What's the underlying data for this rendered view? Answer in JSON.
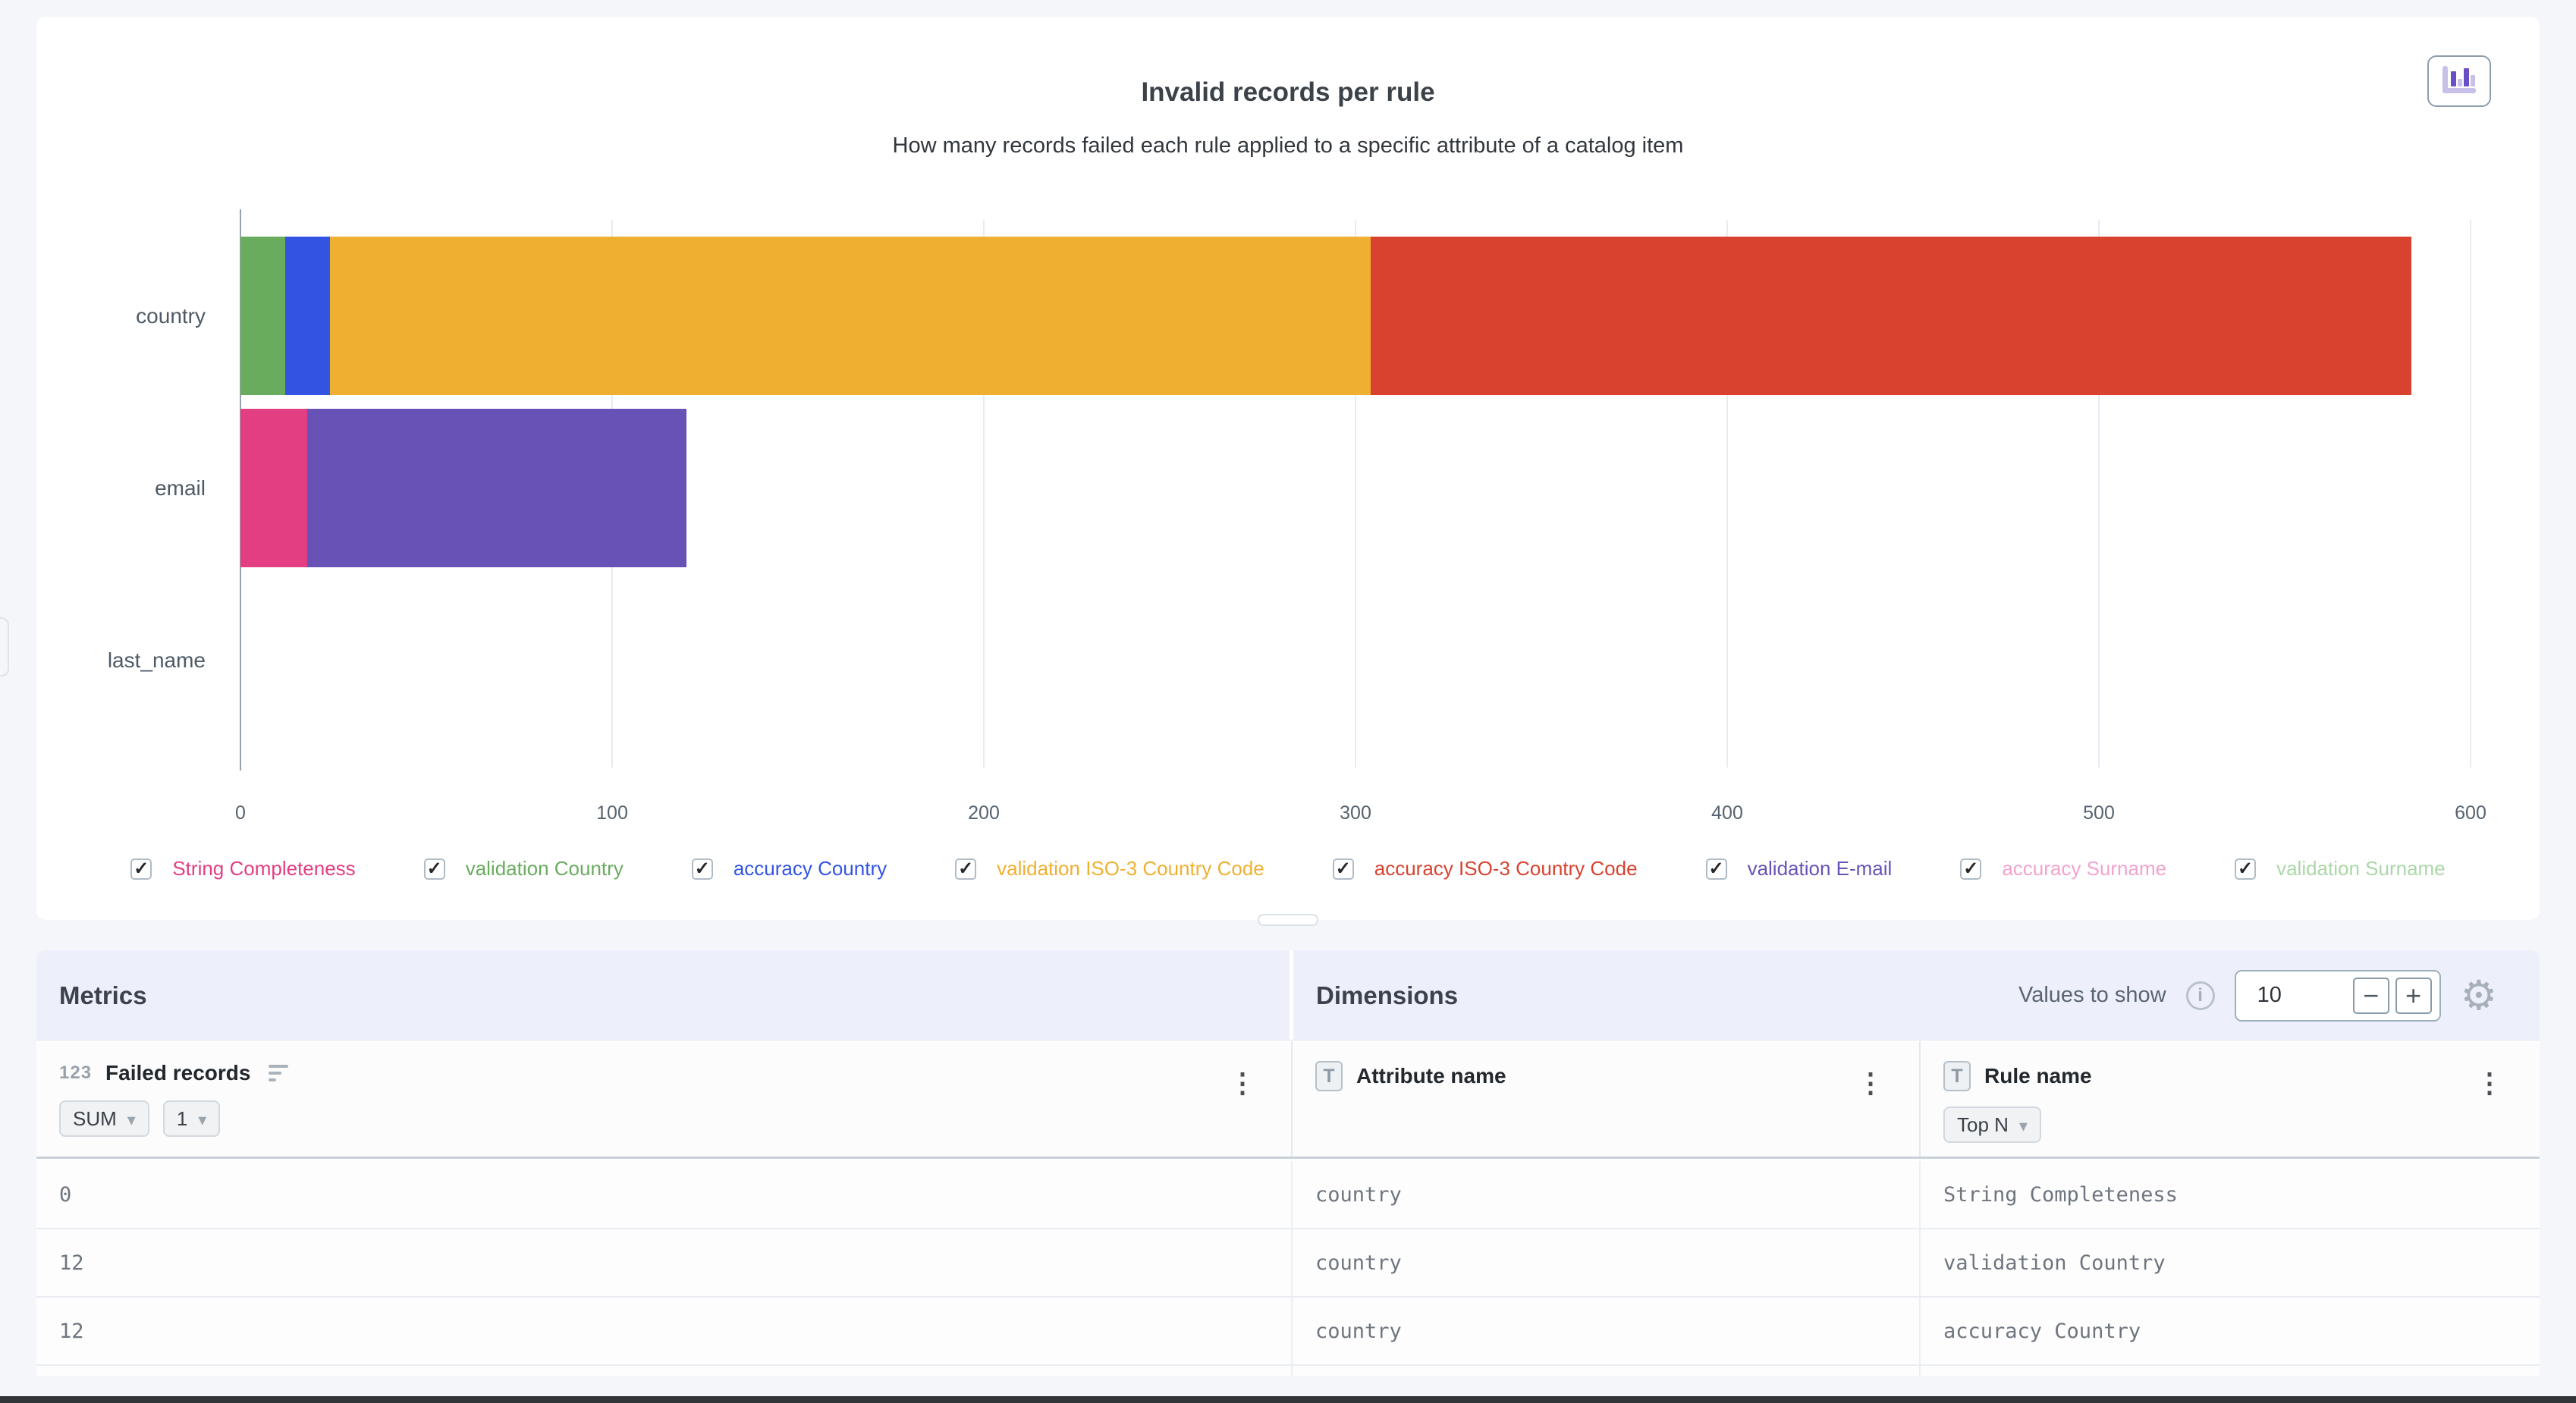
{
  "chart_data": {
    "type": "bar",
    "orientation": "horizontal",
    "stacked": true,
    "title": "Invalid records per rule",
    "subtitle": "How many records failed each rule applied to a specific attribute of a catalog item",
    "categories": [
      "country",
      "email",
      "last_name"
    ],
    "series": [
      {
        "name": "String Completeness",
        "color": "#e33e82",
        "values": [
          0,
          18,
          0
        ]
      },
      {
        "name": "validation Country",
        "color": "#69ac5e",
        "values": [
          12,
          0,
          0
        ]
      },
      {
        "name": "accuracy Country",
        "color": "#3354e3",
        "values": [
          12,
          0,
          0
        ]
      },
      {
        "name": "validation ISO-3 Country Code",
        "color": "#efb032",
        "values": [
          280,
          0,
          0
        ]
      },
      {
        "name": "accuracy ISO-3 Country Code",
        "color": "#d8422f",
        "values": [
          280,
          0,
          0
        ]
      },
      {
        "name": "validation E-mail",
        "color": "#6952b5",
        "values": [
          0,
          102,
          0
        ]
      },
      {
        "name": "accuracy Surname",
        "color": "#f2a3ce",
        "values": [
          0,
          0,
          0
        ]
      },
      {
        "name": "validation Surname",
        "color": "#abd8a8",
        "values": [
          0,
          0,
          0
        ]
      }
    ],
    "xlim": [
      0,
      600
    ],
    "xticks": [
      "0",
      "100",
      "200",
      "300",
      "400",
      "500",
      "600"
    ],
    "grid": true,
    "legend_position": "bottom",
    "legend_all_checked": true
  },
  "table": {
    "metrics_label": "Metrics",
    "dimensions_label": "Dimensions",
    "values_to_show": {
      "label": "Values to show",
      "value": "10"
    },
    "columns": [
      {
        "badge": "123",
        "label": "Failed records",
        "chips": [
          "SUM",
          "1"
        ]
      },
      {
        "badge": "T",
        "label": "Attribute name",
        "chips": []
      },
      {
        "badge": "T",
        "label": "Rule name",
        "chips": [
          "Top N"
        ]
      }
    ],
    "rows": [
      [
        "0",
        "country",
        "String Completeness"
      ],
      [
        "12",
        "country",
        "validation Country"
      ],
      [
        "12",
        "country",
        "accuracy Country"
      ]
    ]
  },
  "icons": {
    "chart_type": "bar-chart-icon",
    "metric_sort": "sort-descending-icon",
    "column_menu": "kebab-menu-icon",
    "values_info": "info-icon",
    "settings": "gear-icon",
    "chip_caret": "dropdown-caret-icon",
    "legend_checkbox": "checkbox-checked-icon"
  }
}
